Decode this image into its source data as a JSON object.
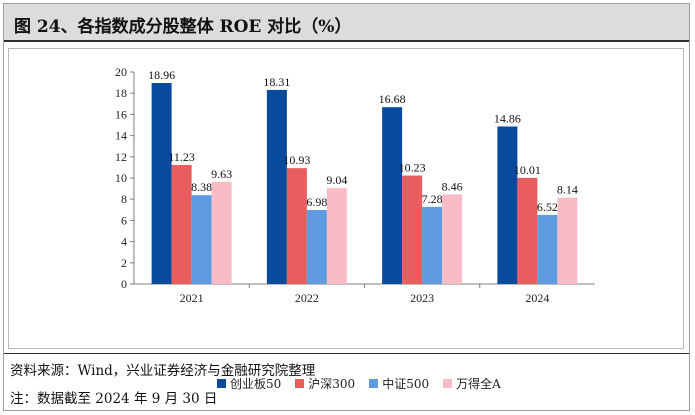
{
  "title": "图 24、各指数成分股整体 ROE 对比（%）",
  "source": "资料来源：Wind，兴业证券经济与金融研究院整理",
  "note": "注：数据截至 2024 年 9 月 30 日",
  "chart_data": {
    "type": "bar",
    "title": "",
    "xlabel": "",
    "ylabel": "",
    "categories": [
      "2021",
      "2022",
      "2023",
      "2024"
    ],
    "ylim": [
      0,
      20
    ],
    "yticks": [
      0,
      2,
      4,
      6,
      8,
      10,
      12,
      14,
      16,
      18,
      20
    ],
    "grid": false,
    "legend_position": "bottom",
    "series": [
      {
        "name": "创业板50",
        "color": "#0a4a9c",
        "values": [
          18.96,
          18.31,
          16.68,
          14.86
        ]
      },
      {
        "name": "沪深300",
        "color": "#e85e5e",
        "values": [
          11.23,
          10.93,
          10.23,
          10.01
        ]
      },
      {
        "name": "中证500",
        "color": "#5e9be0",
        "values": [
          8.38,
          6.98,
          7.28,
          6.52
        ]
      },
      {
        "name": "万得全A",
        "color": "#f8bcc6",
        "values": [
          9.63,
          9.04,
          8.46,
          8.14
        ]
      }
    ]
  }
}
